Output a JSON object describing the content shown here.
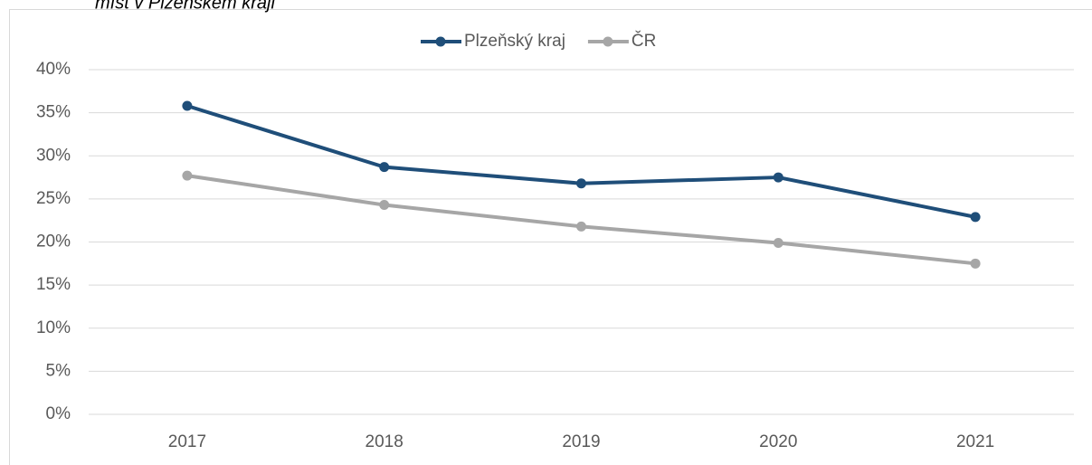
{
  "chart_data": {
    "type": "line",
    "subtitle": "míst v Plzeňském kraji",
    "categories": [
      "2017",
      "2018",
      "2019",
      "2020",
      "2021"
    ],
    "series": [
      {
        "name": "Plzeňský kraj",
        "color": "#1f4e79",
        "values": [
          35.8,
          28.7,
          26.8,
          27.5,
          22.9
        ]
      },
      {
        "name": "ČR",
        "color": "#a6a6a6",
        "values": [
          27.7,
          24.3,
          21.8,
          19.9,
          17.5
        ]
      }
    ],
    "ylim": [
      0,
      40
    ],
    "yticks": [
      {
        "value": 0,
        "label": "0%"
      },
      {
        "value": 5,
        "label": "5%"
      },
      {
        "value": 10,
        "label": "10%"
      },
      {
        "value": 15,
        "label": "15%"
      },
      {
        "value": 20,
        "label": "20%"
      },
      {
        "value": 25,
        "label": "25%"
      },
      {
        "value": 30,
        "label": "30%"
      },
      {
        "value": 35,
        "label": "35%"
      },
      {
        "value": 40,
        "label": "40%"
      }
    ],
    "grid": true,
    "legend": "top"
  }
}
